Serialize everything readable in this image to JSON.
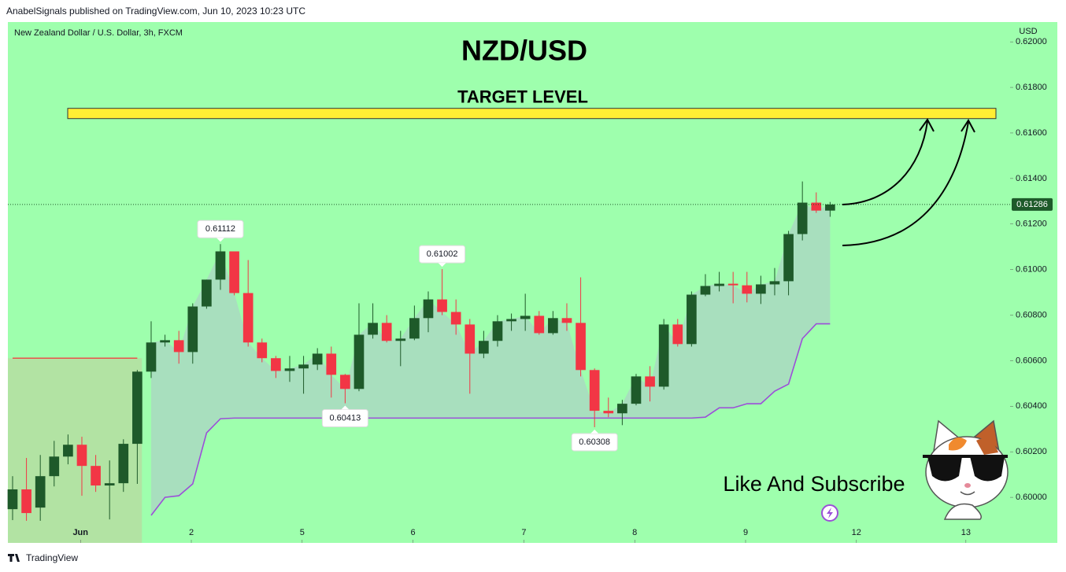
{
  "header": "AnabelSignals published on TradingView.com, Jun 10, 2023 10:23 UTC",
  "footer": "TradingView",
  "call_to_action": "Like And Subscribe",
  "chart_data": {
    "type": "candlestick",
    "title": "NZD/USD",
    "subtitle": "New Zealand Dollar / U.S. Dollar, 3h, FXCM",
    "y_axis_label": "USD",
    "up_color": "#1e5a2a",
    "down_color": "#f23645",
    "background": "#9effad",
    "x": [
      0,
      1,
      2,
      3,
      4,
      5,
      6,
      7,
      8,
      9,
      10,
      11,
      12,
      13,
      14,
      15,
      16,
      17,
      18,
      19,
      20,
      21,
      22,
      23,
      24,
      25,
      26,
      27,
      28,
      29,
      30,
      31,
      32,
      33,
      34,
      35,
      36,
      37,
      38,
      39,
      40,
      41,
      42,
      43,
      44,
      45,
      46,
      47,
      48,
      49,
      50,
      51,
      52,
      53,
      54,
      55,
      56,
      57,
      58,
      59
    ],
    "open": [
      0.59948,
      0.60035,
      0.59955,
      0.60093,
      0.60179,
      0.60231,
      0.60138,
      0.60052,
      0.60062,
      0.60235,
      0.60552,
      0.6068,
      0.6069,
      0.60638,
      0.60838,
      0.60956,
      0.6108,
      0.60897,
      0.6068,
      0.60611,
      0.60555,
      0.60566,
      0.60583,
      0.60631,
      0.60538,
      0.60476,
      0.60714,
      0.60766,
      0.60687,
      0.60697,
      0.60787,
      0.60869,
      0.60814,
      0.60759,
      0.60631,
      0.60687,
      0.60773,
      0.60783,
      0.60797,
      0.60721,
      0.60787,
      0.60766,
      0.60559,
      0.6038,
      0.60369,
      0.60411,
      0.60531,
      0.60486,
      0.60759,
      0.60673,
      0.6089,
      0.60928,
      0.60938,
      0.60931,
      0.60894,
      0.60935,
      0.60949,
      0.61156,
      0.61294,
      0.61259
    ],
    "high": [
      0.60093,
      0.60173,
      0.60186,
      0.60248,
      0.60276,
      0.60266,
      0.60186,
      0.60162,
      0.60255,
      0.60559,
      0.60773,
      0.60714,
      0.60731,
      0.60852,
      0.60956,
      0.61112,
      0.6108,
      0.61042,
      0.60697,
      0.60621,
      0.60621,
      0.60621,
      0.60655,
      0.60662,
      0.60542,
      0.60852,
      0.60852,
      0.608,
      0.60731,
      0.60842,
      0.60904,
      0.61002,
      0.60869,
      0.60783,
      0.60731,
      0.608,
      0.60807,
      0.60894,
      0.60818,
      0.60818,
      0.60852,
      0.60966,
      0.60566,
      0.60438,
      0.60428,
      0.60542,
      0.60576,
      0.60783,
      0.60783,
      0.60904,
      0.6098,
      0.6099,
      0.6099,
      0.6099,
      0.60973,
      0.61007,
      0.6117,
      0.61387,
      0.61339,
      0.61297
    ],
    "low": [
      0.599,
      0.59897,
      0.59897,
      0.60048,
      0.60145,
      0.60007,
      0.60024,
      0.59903,
      0.60024,
      0.60059,
      0.60524,
      0.60662,
      0.60587,
      0.60587,
      0.60828,
      0.60911,
      0.60887,
      0.60662,
      0.60593,
      0.60524,
      0.60507,
      0.60455,
      0.60559,
      0.60438,
      0.60413,
      0.60466,
      0.60697,
      0.6068,
      0.60576,
      0.6069,
      0.60725,
      0.608,
      0.60714,
      0.60455,
      0.60611,
      0.60662,
      0.60731,
      0.60731,
      0.60714,
      0.60714,
      0.60731,
      0.60531,
      0.60308,
      0.60352,
      0.60317,
      0.60404,
      0.60421,
      0.60473,
      0.60662,
      0.60662,
      0.60883,
      0.60904,
      0.60852,
      0.60856,
      0.60849,
      0.60887,
      0.60887,
      0.61128,
      0.61249,
      0.61232
    ],
    "close": [
      0.60035,
      0.59931,
      0.60093,
      0.60179,
      0.60231,
      0.60138,
      0.60052,
      0.60062,
      0.60235,
      0.60552,
      0.6068,
      0.6069,
      0.60638,
      0.60838,
      0.60956,
      0.6108,
      0.60897,
      0.6068,
      0.60611,
      0.60555,
      0.60566,
      0.60583,
      0.60631,
      0.60538,
      0.60476,
      0.60714,
      0.60766,
      0.60687,
      0.60697,
      0.60787,
      0.60869,
      0.60814,
      0.60759,
      0.60631,
      0.60687,
      0.60773,
      0.60783,
      0.60797,
      0.60721,
      0.60787,
      0.60766,
      0.60559,
      0.6038,
      0.60369,
      0.60411,
      0.60531,
      0.60486,
      0.60759,
      0.60673,
      0.6089,
      0.60928,
      0.60938,
      0.60931,
      0.60894,
      0.60935,
      0.60949,
      0.61156,
      0.61294,
      0.61259,
      0.61286
    ],
    "lines": [
      {
        "color": "#e8534a",
        "fill": "#b4e0a2",
        "values": [
          0.60611,
          0.60611,
          0.60611,
          0.60611,
          0.60611,
          0.60611,
          0.60611,
          0.60611,
          0.60611,
          0.60611,
          null,
          null,
          null,
          null,
          null,
          null,
          null,
          null,
          null,
          null,
          null,
          null,
          null,
          null,
          null,
          null,
          null,
          null,
          null,
          null,
          null,
          null,
          null,
          null,
          null,
          null,
          null,
          null,
          null,
          null,
          null,
          null,
          null,
          null,
          null,
          null,
          null,
          null,
          null,
          null,
          null,
          null,
          null,
          null,
          null,
          null,
          null,
          null,
          null,
          null
        ]
      },
      {
        "color": "#9b4fd8",
        "fill": "#a9dcc0",
        "values": [
          null,
          null,
          null,
          null,
          null,
          null,
          null,
          null,
          null,
          null,
          0.59921,
          0.6,
          0.60007,
          0.60059,
          0.60283,
          0.60345,
          0.60348,
          0.60348,
          0.60348,
          0.60348,
          0.60348,
          0.60348,
          0.60348,
          0.60348,
          0.60348,
          0.60348,
          0.60348,
          0.60348,
          0.60348,
          0.60348,
          0.60348,
          0.60348,
          0.60348,
          0.60348,
          0.60348,
          0.60348,
          0.60348,
          0.60348,
          0.60348,
          0.60348,
          0.60348,
          0.60348,
          0.60348,
          0.60348,
          0.60348,
          0.60348,
          0.60348,
          0.60348,
          0.60348,
          0.60348,
          0.60352,
          0.60393,
          0.60393,
          0.60411,
          0.60411,
          0.60466,
          0.60497,
          0.60697,
          0.60762,
          0.60762
        ]
      }
    ],
    "xlim": [
      -0.34,
      71.82
    ],
    "ylim": [
      0.598,
      0.62087
    ],
    "xticks": [
      {
        "value": 4.9,
        "label": "Jun"
      },
      {
        "value": 12.9,
        "label": "2"
      },
      {
        "value": 20.9,
        "label": "5"
      },
      {
        "value": 28.9,
        "label": "6"
      },
      {
        "value": 36.9,
        "label": "7"
      },
      {
        "value": 44.9,
        "label": "8"
      },
      {
        "value": 52.9,
        "label": "9"
      },
      {
        "value": 60.9,
        "label": "12"
      },
      {
        "value": 68.8,
        "label": "13"
      }
    ],
    "yticks": [
      {
        "value": 0.6,
        "label": "0.60000"
      },
      {
        "value": 0.602,
        "label": "0.60200"
      },
      {
        "value": 0.604,
        "label": "0.60400"
      },
      {
        "value": 0.606,
        "label": "0.60600"
      },
      {
        "value": 0.608,
        "label": "0.60800"
      },
      {
        "value": 0.61,
        "label": "0.61000"
      },
      {
        "value": 0.612,
        "label": "0.61200"
      },
      {
        "value": 0.614,
        "label": "0.61400"
      },
      {
        "value": 0.616,
        "label": "0.61600"
      },
      {
        "value": 0.618,
        "label": "0.61800"
      },
      {
        "value": 0.62,
        "label": "0.62000"
      }
    ],
    "last_price": {
      "value": 0.61286,
      "label": "0.61286"
    },
    "target": {
      "label": "TARGET LEVEL",
      "range": [
        0.61663,
        0.61708
      ],
      "color": "#ffee33"
    },
    "annotations": [
      {
        "x": 15,
        "y": 0.61112,
        "label": "0.61112"
      },
      {
        "x": 31,
        "y": 0.61002,
        "label": "0.61002"
      },
      {
        "x": 24,
        "y": 0.60413,
        "label": "0.60413"
      },
      {
        "x": 42,
        "y": 0.60308,
        "label": "0.60308"
      }
    ]
  }
}
